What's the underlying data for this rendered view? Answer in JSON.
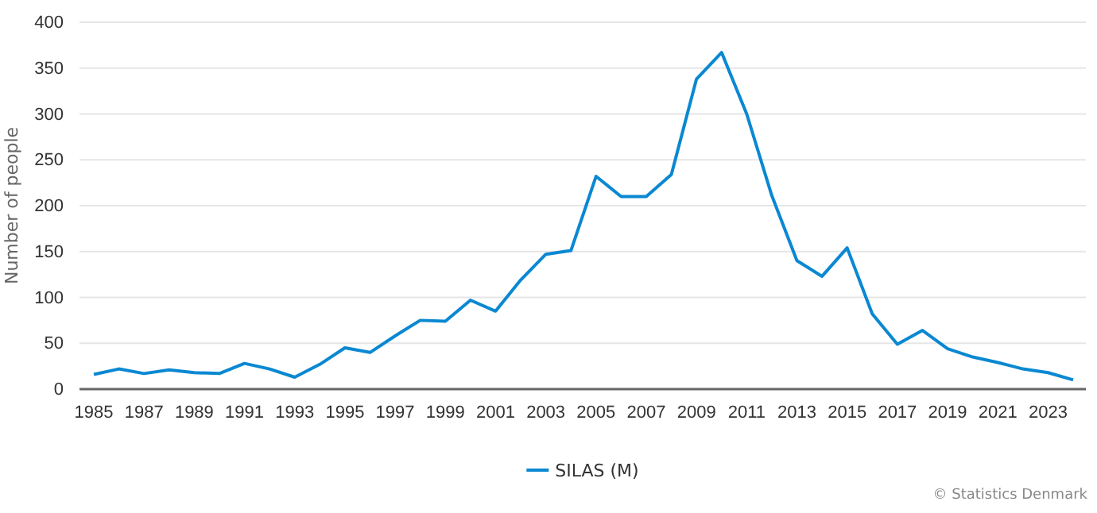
{
  "chart_data": {
    "type": "line",
    "ylabel": "Number of people",
    "categories": [
      "1985",
      null,
      "1987",
      null,
      "1989",
      null,
      "1991",
      null,
      "1993",
      null,
      "1995",
      null,
      "1997",
      null,
      "1999",
      null,
      "2001",
      null,
      "2003",
      null,
      "2005",
      null,
      "2007",
      null,
      "2009",
      null,
      "2011",
      null,
      "2013",
      null,
      "2015",
      null,
      "2017",
      null,
      "2019",
      null,
      "2021",
      null,
      "2023",
      null
    ],
    "series": [
      {
        "name": "SILAS (M)",
        "color": "#0a88d2",
        "values": [
          16,
          22,
          17,
          21,
          18,
          17,
          28,
          22,
          13,
          27,
          45,
          40,
          58,
          75,
          74,
          97,
          85,
          119,
          147,
          151,
          232,
          210,
          210,
          234,
          338,
          367,
          300,
          211,
          140,
          123,
          154,
          82,
          49,
          64,
          44,
          35,
          29,
          22,
          18,
          10
        ]
      }
    ],
    "ylim": [
      0,
      400
    ],
    "yticks": [
      0,
      50,
      100,
      150,
      200,
      250,
      300,
      350,
      400
    ],
    "grid": "y",
    "legend": "bottom",
    "marker": "none",
    "line_style": "solid",
    "annotations": [
      "© Statistics Denmark"
    ]
  }
}
